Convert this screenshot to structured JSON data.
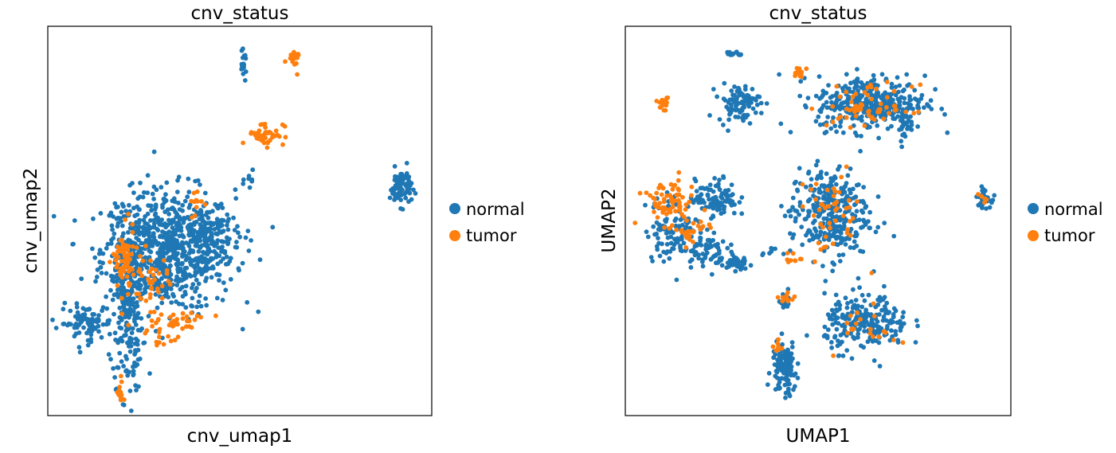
{
  "colors": {
    "normal": "#1f77b4",
    "tumor": "#ff7f0e"
  },
  "chart_data": [
    {
      "type": "scatter",
      "title": "cnv_status",
      "xlabel": "cnv_umap1",
      "ylabel": "cnv_umap2",
      "xlim": [
        0,
        10
      ],
      "ylim": [
        0,
        10
      ],
      "legend": [
        "normal",
        "tumor"
      ],
      "legend_placement": "right",
      "clusters": [
        {
          "series": "normal",
          "cx": 3.1,
          "cy": 4.2,
          "sx": 1.1,
          "sy": 1.0,
          "n": 700
        },
        {
          "series": "normal",
          "cx": 2.0,
          "cy": 3.0,
          "sx": 0.25,
          "sy": 1.6,
          "n": 260
        },
        {
          "series": "normal",
          "cx": 0.9,
          "cy": 2.3,
          "sx": 0.45,
          "sy": 0.3,
          "n": 90
        },
        {
          "series": "normal",
          "cx": 4.2,
          "cy": 4.6,
          "sx": 0.5,
          "sy": 0.45,
          "n": 120
        },
        {
          "series": "normal",
          "cx": 9.3,
          "cy": 5.9,
          "sx": 0.18,
          "sy": 0.3,
          "n": 80
        },
        {
          "series": "normal",
          "cx": 5.1,
          "cy": 9.1,
          "sx": 0.05,
          "sy": 0.2,
          "n": 20
        },
        {
          "series": "normal",
          "cx": 5.3,
          "cy": 6.1,
          "sx": 0.1,
          "sy": 0.25,
          "n": 8
        },
        {
          "series": "tumor",
          "cx": 1.9,
          "cy": 3.9,
          "sx": 0.18,
          "sy": 0.55,
          "n": 70
        },
        {
          "series": "tumor",
          "cx": 2.6,
          "cy": 3.4,
          "sx": 0.3,
          "sy": 0.45,
          "n": 40
        },
        {
          "series": "tumor",
          "cx": 3.3,
          "cy": 2.4,
          "sx": 0.6,
          "sy": 0.15,
          "n": 35
        },
        {
          "series": "tumor",
          "cx": 2.9,
          "cy": 1.9,
          "sx": 0.3,
          "sy": 0.15,
          "n": 12
        },
        {
          "series": "tumor",
          "cx": 5.7,
          "cy": 7.3,
          "sx": 0.3,
          "sy": 0.2,
          "n": 45
        },
        {
          "series": "tumor",
          "cx": 6.4,
          "cy": 9.2,
          "sx": 0.1,
          "sy": 0.2,
          "n": 18
        },
        {
          "series": "tumor",
          "cx": 3.8,
          "cy": 5.5,
          "sx": 0.12,
          "sy": 0.3,
          "n": 12
        },
        {
          "series": "tumor",
          "cx": 1.8,
          "cy": 0.5,
          "sx": 0.05,
          "sy": 0.25,
          "n": 12
        }
      ]
    },
    {
      "type": "scatter",
      "title": "cnv_status",
      "xlabel": "UMAP1",
      "ylabel": "UMAP2",
      "xlim": [
        0,
        10
      ],
      "ylim": [
        0,
        10
      ],
      "legend": [
        "normal",
        "tumor"
      ],
      "legend_placement": "right",
      "clusters": [
        {
          "series": "normal",
          "cx": 6.4,
          "cy": 8.1,
          "sx": 0.9,
          "sy": 0.45,
          "n": 360
        },
        {
          "series": "normal",
          "cx": 7.3,
          "cy": 7.6,
          "sx": 0.15,
          "sy": 0.3,
          "n": 25
        },
        {
          "series": "normal",
          "cx": 2.9,
          "cy": 8.1,
          "sx": 0.35,
          "sy": 0.3,
          "n": 90
        },
        {
          "series": "normal",
          "cx": 2.8,
          "cy": 9.4,
          "sx": 0.15,
          "sy": 0.04,
          "n": 12
        },
        {
          "series": "normal",
          "cx": 5.3,
          "cy": 5.2,
          "sx": 0.65,
          "sy": 0.75,
          "n": 320
        },
        {
          "series": "normal",
          "cx": 2.3,
          "cy": 5.6,
          "sx": 0.35,
          "sy": 0.3,
          "n": 100
        },
        {
          "series": "normal",
          "cx": 1.2,
          "cy": 4.8,
          "sx": 0.5,
          "sy": 0.55,
          "n": 110
        },
        {
          "series": "normal",
          "cx": 2.0,
          "cy": 4.2,
          "sx": 0.35,
          "sy": 0.25,
          "n": 60
        },
        {
          "series": "normal",
          "cx": 2.8,
          "cy": 3.9,
          "sx": 0.2,
          "sy": 0.15,
          "n": 40
        },
        {
          "series": "normal",
          "cx": 6.3,
          "cy": 2.3,
          "sx": 0.7,
          "sy": 0.45,
          "n": 230
        },
        {
          "series": "normal",
          "cx": 4.1,
          "cy": 1.1,
          "sx": 0.2,
          "sy": 0.45,
          "n": 120
        },
        {
          "series": "normal",
          "cx": 4.1,
          "cy": 3.0,
          "sx": 0.12,
          "sy": 0.2,
          "n": 20
        },
        {
          "series": "normal",
          "cx": 9.4,
          "cy": 5.6,
          "sx": 0.12,
          "sy": 0.15,
          "n": 35
        },
        {
          "series": "normal",
          "cx": 3.7,
          "cy": 4.2,
          "sx": 0.15,
          "sy": 0.05,
          "n": 8
        },
        {
          "series": "tumor",
          "cx": 6.4,
          "cy": 8.0,
          "sx": 0.7,
          "sy": 0.35,
          "n": 60
        },
        {
          "series": "tumor",
          "cx": 4.5,
          "cy": 8.9,
          "sx": 0.1,
          "sy": 0.1,
          "n": 14
        },
        {
          "series": "tumor",
          "cx": 0.9,
          "cy": 8.1,
          "sx": 0.1,
          "sy": 0.1,
          "n": 16
        },
        {
          "series": "tumor",
          "cx": 1.0,
          "cy": 5.5,
          "sx": 0.45,
          "sy": 0.35,
          "n": 70
        },
        {
          "series": "tumor",
          "cx": 1.6,
          "cy": 4.7,
          "sx": 0.3,
          "sy": 0.3,
          "n": 25
        },
        {
          "series": "tumor",
          "cx": 5.3,
          "cy": 5.2,
          "sx": 0.55,
          "sy": 0.65,
          "n": 45
        },
        {
          "series": "tumor",
          "cx": 4.4,
          "cy": 4.0,
          "sx": 0.15,
          "sy": 0.1,
          "n": 10
        },
        {
          "series": "tumor",
          "cx": 4.2,
          "cy": 3.0,
          "sx": 0.2,
          "sy": 0.12,
          "n": 10
        },
        {
          "series": "tumor",
          "cx": 6.3,
          "cy": 2.2,
          "sx": 0.5,
          "sy": 0.35,
          "n": 20
        },
        {
          "series": "tumor",
          "cx": 4.0,
          "cy": 1.6,
          "sx": 0.1,
          "sy": 0.15,
          "n": 8
        },
        {
          "series": "tumor",
          "cx": 9.4,
          "cy": 5.6,
          "sx": 0.08,
          "sy": 0.08,
          "n": 5
        }
      ]
    }
  ]
}
